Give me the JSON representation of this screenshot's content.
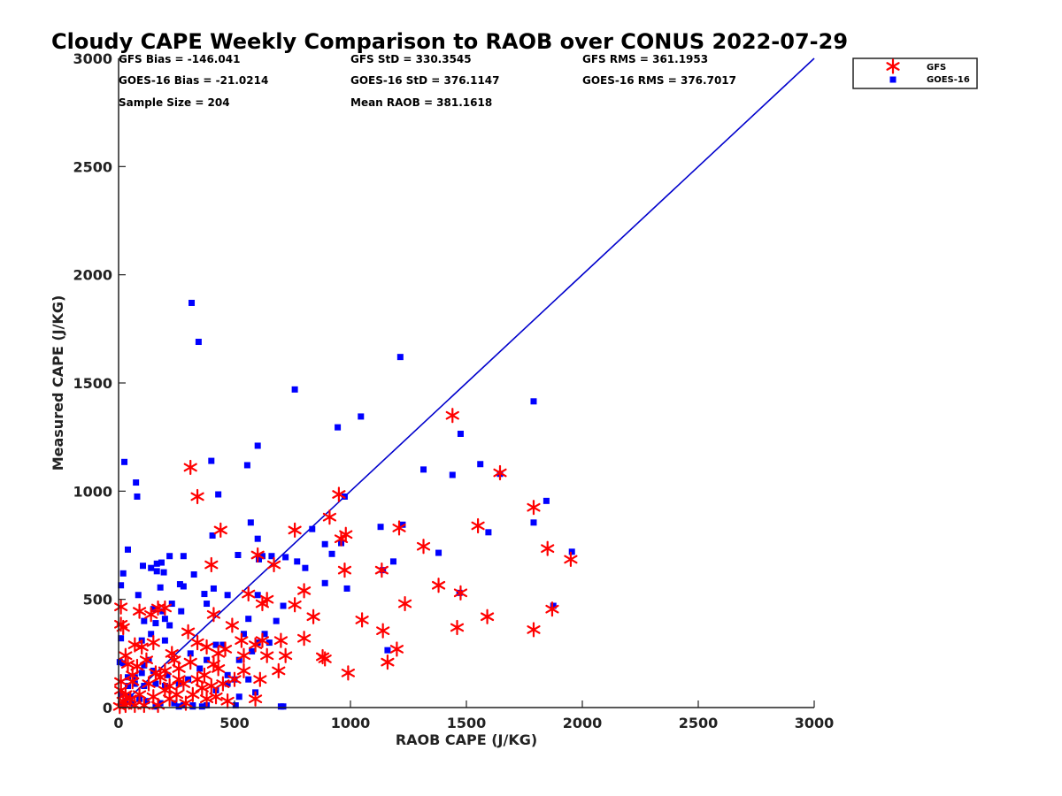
{
  "chart_data": {
    "type": "scatter",
    "title": "Cloudy CAPE Weekly Comparison to RAOB over CONUS 2022-07-29",
    "xlabel": "RAOB CAPE (J/KG)",
    "ylabel": "Measured CAPE (J/KG)",
    "xlim": [
      0,
      3000
    ],
    "ylim": [
      0,
      3000
    ],
    "xticks": [
      0,
      500,
      1000,
      1500,
      2000,
      2500,
      3000
    ],
    "yticks": [
      0,
      500,
      1000,
      1500,
      2000,
      2500,
      3000
    ],
    "grid": false,
    "legend_position": "top-right-outside",
    "reference_line": {
      "x": [
        0,
        3000
      ],
      "y": [
        0,
        3000
      ],
      "color": "#0000cc"
    },
    "stats": [
      [
        "GFS Bias = -146.041",
        "GFS StD = 330.3545",
        "GFS RMS = 361.1953"
      ],
      [
        "GOES-16 Bias = -21.0214",
        "GOES-16 StD = 376.1147",
        "GOES-16 RMS = 376.7017"
      ],
      [
        "Sample Size = 204",
        "Mean RAOB = 381.1618",
        ""
      ]
    ],
    "series": [
      {
        "name": "GFS",
        "marker": "asterisk",
        "color": "#ff0000",
        "points": [
          [
            1440,
            1350
          ],
          [
            310,
            1110
          ],
          [
            340,
            975
          ],
          [
            950,
            985
          ],
          [
            1645,
            1085
          ],
          [
            1790,
            925
          ],
          [
            440,
            820
          ],
          [
            760,
            820
          ],
          [
            910,
            880
          ],
          [
            960,
            780
          ],
          [
            980,
            800
          ],
          [
            1210,
            830
          ],
          [
            1550,
            840
          ],
          [
            1850,
            735
          ],
          [
            1950,
            685
          ],
          [
            1315,
            745
          ],
          [
            600,
            705
          ],
          [
            400,
            660
          ],
          [
            670,
            660
          ],
          [
            975,
            635
          ],
          [
            1135,
            635
          ],
          [
            1380,
            565
          ],
          [
            1475,
            530
          ],
          [
            1235,
            480
          ],
          [
            1870,
            455
          ],
          [
            1590,
            420
          ],
          [
            1050,
            405
          ],
          [
            1140,
            355
          ],
          [
            1460,
            370
          ],
          [
            1790,
            360
          ],
          [
            800,
            540
          ],
          [
            840,
            420
          ],
          [
            760,
            475
          ],
          [
            640,
            500
          ],
          [
            620,
            480
          ],
          [
            560,
            525
          ],
          [
            410,
            430
          ],
          [
            300,
            350
          ],
          [
            490,
            380
          ],
          [
            340,
            300
          ],
          [
            380,
            280
          ],
          [
            230,
            250
          ],
          [
            150,
            300
          ],
          [
            100,
            280
          ],
          [
            70,
            290
          ],
          [
            20,
            370
          ],
          [
            10,
            385
          ],
          [
            10,
            465
          ],
          [
            90,
            445
          ],
          [
            170,
            460
          ],
          [
            140,
            430
          ],
          [
            200,
            460
          ],
          [
            700,
            310
          ],
          [
            800,
            320
          ],
          [
            720,
            240
          ],
          [
            640,
            240
          ],
          [
            690,
            170
          ],
          [
            590,
            290
          ],
          [
            620,
            310
          ],
          [
            880,
            235
          ],
          [
            890,
            225
          ],
          [
            990,
            160
          ],
          [
            1160,
            210
          ],
          [
            1200,
            270
          ],
          [
            530,
            310
          ],
          [
            540,
            240
          ],
          [
            460,
            270
          ],
          [
            430,
            250
          ],
          [
            410,
            200
          ],
          [
            370,
            150
          ],
          [
            310,
            210
          ],
          [
            240,
            220
          ],
          [
            260,
            180
          ],
          [
            200,
            170
          ],
          [
            160,
            160
          ],
          [
            120,
            220
          ],
          [
            80,
            190
          ],
          [
            30,
            240
          ],
          [
            40,
            200
          ],
          [
            60,
            150
          ],
          [
            10,
            120
          ],
          [
            10,
            80
          ],
          [
            30,
            60
          ],
          [
            50,
            40
          ],
          [
            20,
            30
          ],
          [
            90,
            60
          ],
          [
            130,
            110
          ],
          [
            150,
            50
          ],
          [
            200,
            80
          ],
          [
            220,
            40
          ],
          [
            250,
            60
          ],
          [
            290,
            20
          ],
          [
            320,
            60
          ],
          [
            360,
            90
          ],
          [
            420,
            50
          ],
          [
            470,
            30
          ],
          [
            590,
            40
          ],
          [
            610,
            130
          ],
          [
            500,
            130
          ],
          [
            540,
            170
          ],
          [
            450,
            110
          ],
          [
            400,
            100
          ],
          [
            340,
            130
          ],
          [
            280,
            110
          ],
          [
            220,
            100
          ],
          [
            170,
            10
          ],
          [
            110,
            10
          ],
          [
            70,
            10
          ],
          [
            30,
            10
          ],
          [
            5,
            5
          ],
          [
            60,
            120
          ],
          [
            180,
            140
          ],
          [
            260,
            130
          ],
          [
            380,
            40
          ],
          [
            430,
            180
          ]
        ]
      },
      {
        "name": "GOES-16",
        "marker": "square",
        "color": "#0000ff",
        "points": [
          [
            315,
            1870
          ],
          [
            345,
            1690
          ],
          [
            1215,
            1620
          ],
          [
            760,
            1470
          ],
          [
            1790,
            1415
          ],
          [
            1045,
            1345
          ],
          [
            945,
            1295
          ],
          [
            1475,
            1265
          ],
          [
            600,
            1210
          ],
          [
            400,
            1140
          ],
          [
            555,
            1120
          ],
          [
            1315,
            1100
          ],
          [
            1560,
            1125
          ],
          [
            1440,
            1075
          ],
          [
            1645,
            1080
          ],
          [
            25,
            1135
          ],
          [
            75,
            1040
          ],
          [
            80,
            975
          ],
          [
            430,
            985
          ],
          [
            975,
            975
          ],
          [
            1845,
            955
          ],
          [
            1790,
            855
          ],
          [
            1225,
            845
          ],
          [
            1130,
            835
          ],
          [
            835,
            825
          ],
          [
            1595,
            810
          ],
          [
            405,
            795
          ],
          [
            570,
            855
          ],
          [
            600,
            780
          ],
          [
            960,
            760
          ],
          [
            890,
            755
          ],
          [
            1955,
            720
          ],
          [
            1380,
            715
          ],
          [
            920,
            710
          ],
          [
            515,
            705
          ],
          [
            620,
            700
          ],
          [
            660,
            700
          ],
          [
            770,
            675
          ],
          [
            720,
            695
          ],
          [
            605,
            685
          ],
          [
            1185,
            675
          ],
          [
            220,
            700
          ],
          [
            280,
            700
          ],
          [
            40,
            730
          ],
          [
            105,
            655
          ],
          [
            140,
            645
          ],
          [
            165,
            665
          ],
          [
            185,
            670
          ],
          [
            195,
            625
          ],
          [
            165,
            630
          ],
          [
            325,
            615
          ],
          [
            20,
            620
          ],
          [
            10,
            565
          ],
          [
            85,
            520
          ],
          [
            180,
            555
          ],
          [
            265,
            570
          ],
          [
            280,
            560
          ],
          [
            410,
            550
          ],
          [
            370,
            525
          ],
          [
            470,
            520
          ],
          [
            985,
            550
          ],
          [
            890,
            575
          ],
          [
            805,
            645
          ],
          [
            1140,
            635
          ],
          [
            1470,
            530
          ],
          [
            1875,
            470
          ],
          [
            710,
            470
          ],
          [
            380,
            480
          ],
          [
            230,
            480
          ],
          [
            270,
            445
          ],
          [
            190,
            445
          ],
          [
            150,
            455
          ],
          [
            110,
            400
          ],
          [
            160,
            390
          ],
          [
            200,
            410
          ],
          [
            220,
            380
          ],
          [
            140,
            340
          ],
          [
            100,
            310
          ],
          [
            200,
            310
          ],
          [
            310,
            250
          ],
          [
            380,
            220
          ],
          [
            420,
            290
          ],
          [
            450,
            290
          ],
          [
            470,
            150
          ],
          [
            540,
            340
          ],
          [
            575,
            260
          ],
          [
            630,
            340
          ],
          [
            680,
            400
          ],
          [
            560,
            410
          ],
          [
            520,
            220
          ],
          [
            500,
            130
          ],
          [
            350,
            180
          ],
          [
            300,
            130
          ],
          [
            260,
            110
          ],
          [
            200,
            100
          ],
          [
            160,
            110
          ],
          [
            110,
            100
          ],
          [
            70,
            110
          ],
          [
            40,
            100
          ],
          [
            10,
            320
          ],
          [
            5,
            210
          ],
          [
            20,
            205
          ],
          [
            40,
            140
          ],
          [
            70,
            140
          ],
          [
            100,
            160
          ],
          [
            150,
            170
          ],
          [
            50,
            50
          ],
          [
            30,
            30
          ],
          [
            60,
            20
          ],
          [
            90,
            40
          ],
          [
            120,
            30
          ],
          [
            180,
            20
          ],
          [
            240,
            20
          ],
          [
            320,
            10
          ],
          [
            360,
            5
          ],
          [
            420,
            80
          ],
          [
            470,
            110
          ],
          [
            505,
            10
          ],
          [
            700,
            5
          ],
          [
            710,
            5
          ],
          [
            520,
            50
          ],
          [
            560,
            130
          ],
          [
            600,
            300
          ],
          [
            650,
            300
          ],
          [
            1160,
            265
          ],
          [
            600,
            520
          ],
          [
            110,
            195
          ],
          [
            130,
            220
          ],
          [
            210,
            150
          ],
          [
            10,
            15
          ],
          [
            10,
            60
          ],
          [
            160,
            5
          ],
          [
            260,
            5
          ],
          [
            590,
            70
          ],
          [
            380,
            10
          ],
          [
            280,
            10
          ],
          [
            320,
            5
          ]
        ]
      }
    ]
  }
}
